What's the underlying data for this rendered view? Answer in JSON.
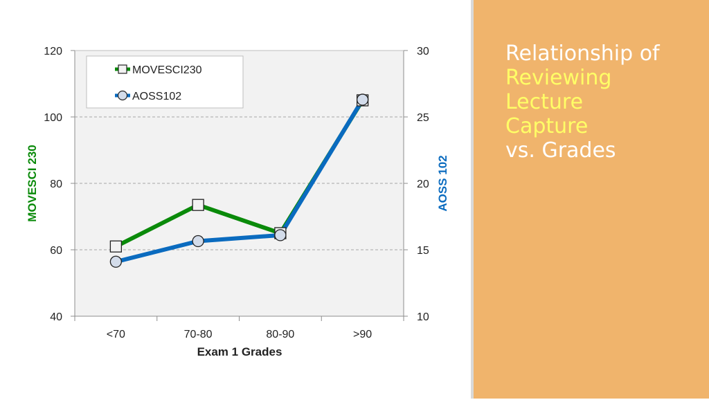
{
  "title": {
    "line1": "Relationship of",
    "line2": "Reviewing",
    "line3": "Lecture",
    "line4": "Capture",
    "line5": "vs. Grades"
  },
  "colors": {
    "panel": "#f0b46c",
    "title_text": "#ffffff",
    "title_highlight": "#ffff66",
    "movesci": "#0a8a0a",
    "aoss": "#0a6bbf",
    "plot_bg": "#f2f2f2"
  },
  "chart_data": {
    "type": "line",
    "categories": [
      "<70",
      "70-80",
      "80-90",
      ">90"
    ],
    "xlabel": "Exam 1 Grades",
    "ylabel": "MOVESCI 230",
    "y2label": "AOSS 102",
    "ylim": [
      40,
      120
    ],
    "y2lim": [
      10,
      30
    ],
    "yticks": [
      40,
      60,
      80,
      100,
      120
    ],
    "y2ticks": [
      10,
      15,
      20,
      25,
      30
    ],
    "grid": "horizontal dashed at 60, 80, 100",
    "legend": "top-left",
    "series": [
      {
        "name": "MOVESCI230",
        "axis": "left",
        "marker": "square",
        "color": "#0a8a0a",
        "values": [
          61,
          73.5,
          65,
          105
        ]
      },
      {
        "name": "AOSS102",
        "axis": "right",
        "marker": "circle",
        "color": "#0a6bbf",
        "values": [
          14.1,
          15.65,
          16.1,
          26.3
        ]
      }
    ]
  }
}
